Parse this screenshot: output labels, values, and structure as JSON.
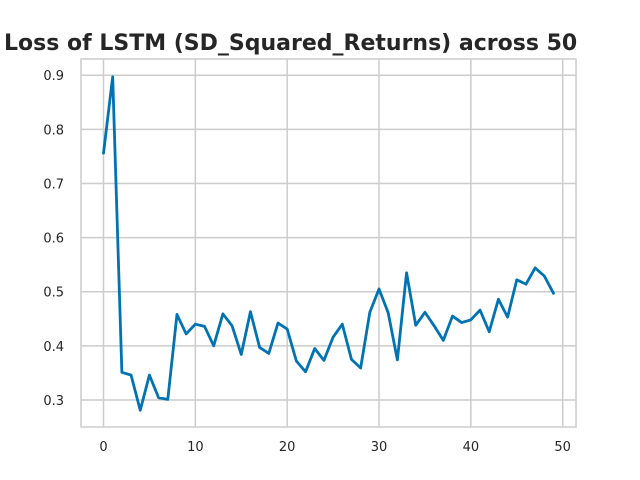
{
  "chart_data": {
    "type": "line",
    "title": "Loss of LSTM (SD_Squared_Returns) across 50",
    "xlabel": "",
    "ylabel": "",
    "xlim": [
      -2.45,
      51.45
    ],
    "ylim": [
      0.25,
      0.93
    ],
    "grid": true,
    "x_ticks": [
      0,
      10,
      20,
      30,
      40,
      50
    ],
    "y_ticks": [
      0.3,
      0.4,
      0.5,
      0.6,
      0.7,
      0.8,
      0.9
    ],
    "x_tick_labels": [
      "0",
      "10",
      "20",
      "30",
      "40",
      "50"
    ],
    "y_tick_labels": [
      "0.3",
      "0.4",
      "0.5",
      "0.6",
      "0.7",
      "0.8",
      "0.9"
    ],
    "series": [
      {
        "color": "#0173b2",
        "x": [
          0,
          1,
          2,
          3,
          4,
          5,
          6,
          7,
          8,
          9,
          10,
          11,
          12,
          13,
          14,
          15,
          16,
          17,
          18,
          19,
          20,
          21,
          22,
          23,
          24,
          25,
          26,
          27,
          28,
          29,
          30,
          31,
          32,
          33,
          34,
          35,
          36,
          37,
          38,
          39,
          40,
          41,
          42,
          43,
          44,
          45,
          46,
          47,
          48,
          49
        ],
        "values": [
          0.756,
          0.897,
          0.351,
          0.346,
          0.281,
          0.346,
          0.304,
          0.301,
          0.458,
          0.422,
          0.44,
          0.436,
          0.4,
          0.459,
          0.437,
          0.384,
          0.463,
          0.397,
          0.386,
          0.442,
          0.431,
          0.372,
          0.352,
          0.395,
          0.373,
          0.416,
          0.44,
          0.375,
          0.359,
          0.462,
          0.505,
          0.461,
          0.374,
          0.535,
          0.438,
          0.462,
          0.437,
          0.41,
          0.455,
          0.443,
          0.448,
          0.466,
          0.426,
          0.486,
          0.453,
          0.522,
          0.514,
          0.544,
          0.529,
          0.497
        ]
      }
    ]
  }
}
